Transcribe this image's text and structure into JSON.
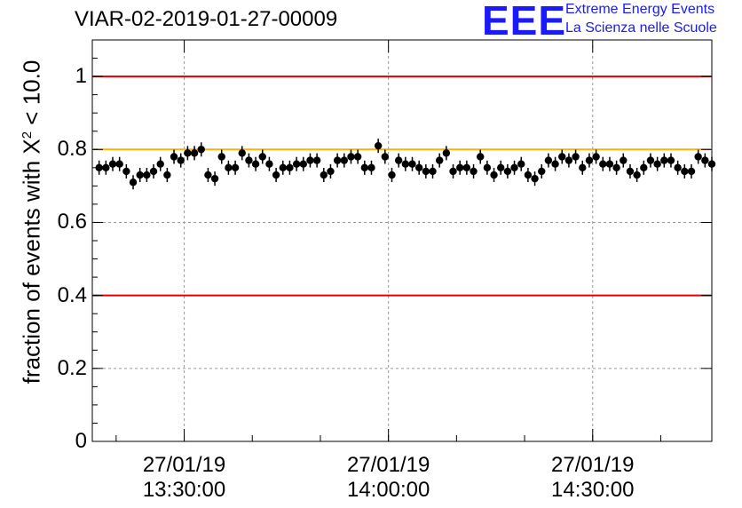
{
  "header": {
    "title": "VIAR-02-2019-01-27-00009",
    "logo_text": "EEE",
    "logo_line1": "Extreme Energy Events",
    "logo_line2": "La Scienza nelle Scuole"
  },
  "colors": {
    "red_line": "#e00000",
    "orange_line": "#ffb300",
    "logo": "#1a1aff",
    "points": "#000000"
  },
  "chart_data": {
    "type": "scatter",
    "title": "VIAR-02-2019-01-27-00009",
    "ylabel_prefix": "fraction of events with X",
    "ylabel_sup": "2",
    "ylabel_suffix": " < 10.0",
    "xlabel": "",
    "xlim": [
      0,
      91
    ],
    "ylim": [
      0,
      1.1
    ],
    "yticks": [
      "0",
      "0.2",
      "0.4",
      "0.6",
      "0.8",
      "1"
    ],
    "ytick_values": [
      0,
      0.2,
      0.4,
      0.6,
      0.8,
      1.0
    ],
    "xticks": [
      {
        "pos": 13.5,
        "date": "27/01/19",
        "time": "13:30:00"
      },
      {
        "pos": 43.5,
        "date": "27/01/19",
        "time": "14:00:00"
      },
      {
        "pos": 73.5,
        "date": "27/01/19",
        "time": "14:30:00"
      }
    ],
    "reference_lines": [
      {
        "y": 1.0,
        "color": "red"
      },
      {
        "y": 0.8,
        "color": "orange"
      },
      {
        "y": 0.4,
        "color": "red"
      }
    ],
    "grid": true,
    "x": [
      1,
      2,
      3,
      4,
      5,
      6,
      7,
      8,
      9,
      10,
      11,
      12,
      13,
      14,
      15,
      16,
      17,
      18,
      19,
      20,
      21,
      22,
      23,
      24,
      25,
      26,
      27,
      28,
      29,
      30,
      31,
      32,
      33,
      34,
      35,
      36,
      37,
      38,
      39,
      40,
      41,
      42,
      43,
      44,
      45,
      46,
      47,
      48,
      49,
      50,
      51,
      52,
      53,
      54,
      55,
      56,
      57,
      58,
      59,
      60,
      61,
      62,
      63,
      64,
      65,
      66,
      67,
      68,
      69,
      70,
      71,
      72,
      73,
      74,
      75,
      76,
      77,
      78,
      79,
      80,
      81,
      82,
      83,
      84,
      85,
      86,
      87,
      88,
      89,
      90,
      91
    ],
    "y": [
      0.75,
      0.75,
      0.76,
      0.76,
      0.74,
      0.71,
      0.73,
      0.73,
      0.74,
      0.76,
      0.73,
      0.78,
      0.77,
      0.79,
      0.79,
      0.8,
      0.73,
      0.72,
      0.78,
      0.75,
      0.75,
      0.79,
      0.77,
      0.76,
      0.78,
      0.76,
      0.73,
      0.75,
      0.75,
      0.76,
      0.76,
      0.77,
      0.77,
      0.73,
      0.74,
      0.77,
      0.77,
      0.78,
      0.78,
      0.75,
      0.75,
      0.81,
      0.78,
      0.73,
      0.77,
      0.76,
      0.76,
      0.75,
      0.74,
      0.74,
      0.77,
      0.79,
      0.74,
      0.75,
      0.75,
      0.74,
      0.78,
      0.75,
      0.73,
      0.75,
      0.74,
      0.75,
      0.76,
      0.73,
      0.72,
      0.74,
      0.77,
      0.76,
      0.78,
      0.77,
      0.78,
      0.75,
      0.77,
      0.78,
      0.76,
      0.76,
      0.75,
      0.77,
      0.74,
      0.73,
      0.75,
      0.77,
      0.76,
      0.77,
      0.77,
      0.75,
      0.74,
      0.74,
      0.78,
      0.77,
      0.76
    ]
  }
}
